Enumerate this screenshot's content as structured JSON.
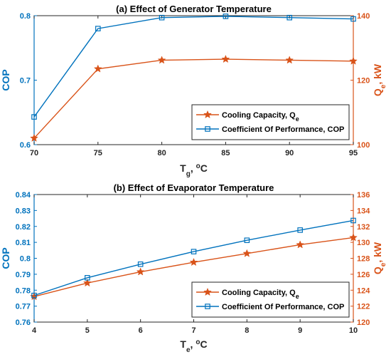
{
  "colors": {
    "cop": "#0072BD",
    "qe": "#D95319",
    "axis": "#262626",
    "grid": "#e6e6e6"
  },
  "chart_data": [
    {
      "type": "line",
      "title": "(a) Effect of Generator Temperature",
      "xlabel": {
        "main": "T",
        "sub": "g",
        "tail": ", ",
        "sup": "o",
        "unit": "C"
      },
      "ylabel_left": "COP",
      "ylabel_right": {
        "main": "Q",
        "sub": "e",
        "tail": ", kW"
      },
      "x": [
        70,
        75,
        80,
        85,
        90,
        95
      ],
      "xlim": [
        70,
        95
      ],
      "xticks": [
        "70",
        "75",
        "80",
        "85",
        "90",
        "95"
      ],
      "ylim_left": [
        0.6,
        0.8
      ],
      "yticks_left": [
        "0.6",
        "0.7",
        "0.8"
      ],
      "ylim_right": [
        100,
        140
      ],
      "yticks_right": [
        "100",
        "120",
        "140"
      ],
      "series": [
        {
          "name": "Cooling Capacity, Q",
          "name_sub": "e",
          "axis": "right",
          "marker": "star",
          "color": "#D95319",
          "values": [
            102.0,
            123.5,
            126.2,
            126.5,
            126.2,
            125.9
          ]
        },
        {
          "name": "Coefficient Of Performance, COP",
          "axis": "left",
          "marker": "square",
          "color": "#0072BD",
          "values": [
            0.643,
            0.78,
            0.797,
            0.799,
            0.797,
            0.795
          ]
        }
      ],
      "legend": "bottom-right",
      "grid": false
    },
    {
      "type": "line",
      "title": "(b) Effect of Evaporator Temperature",
      "xlabel": {
        "main": "T",
        "sub": "e",
        "tail": ", ",
        "sup": "o",
        "unit": "C"
      },
      "ylabel_left": "COP",
      "ylabel_right": {
        "main": "Q",
        "sub": "e",
        "tail": ", kW"
      },
      "x": [
        4,
        5,
        6,
        7,
        8,
        9,
        10
      ],
      "xlim": [
        4,
        10
      ],
      "xticks": [
        "4",
        "5",
        "6",
        "7",
        "8",
        "9",
        "10"
      ],
      "ylim_left": [
        0.76,
        0.84
      ],
      "yticks_left": [
        "0.76",
        "0.77",
        "0.78",
        "0.79",
        "0.8",
        "0.81",
        "0.82",
        "0.83",
        "0.84"
      ],
      "ylim_right": [
        120,
        136
      ],
      "yticks_right": [
        "120",
        "122",
        "124",
        "126",
        "128",
        "130",
        "132",
        "134",
        "136"
      ],
      "series": [
        {
          "name": "Cooling Capacity, Q",
          "name_sub": "e",
          "axis": "right",
          "marker": "star",
          "color": "#D95319",
          "values": [
            123.2,
            124.9,
            126.3,
            127.5,
            128.6,
            129.7,
            130.6
          ]
        },
        {
          "name": "Coefficient Of Performance, COP",
          "axis": "left",
          "marker": "square",
          "color": "#0072BD",
          "values": [
            0.7767,
            0.7878,
            0.7963,
            0.8042,
            0.8113,
            0.8177,
            0.8237
          ]
        }
      ],
      "legend": "bottom-right",
      "grid": false
    }
  ]
}
